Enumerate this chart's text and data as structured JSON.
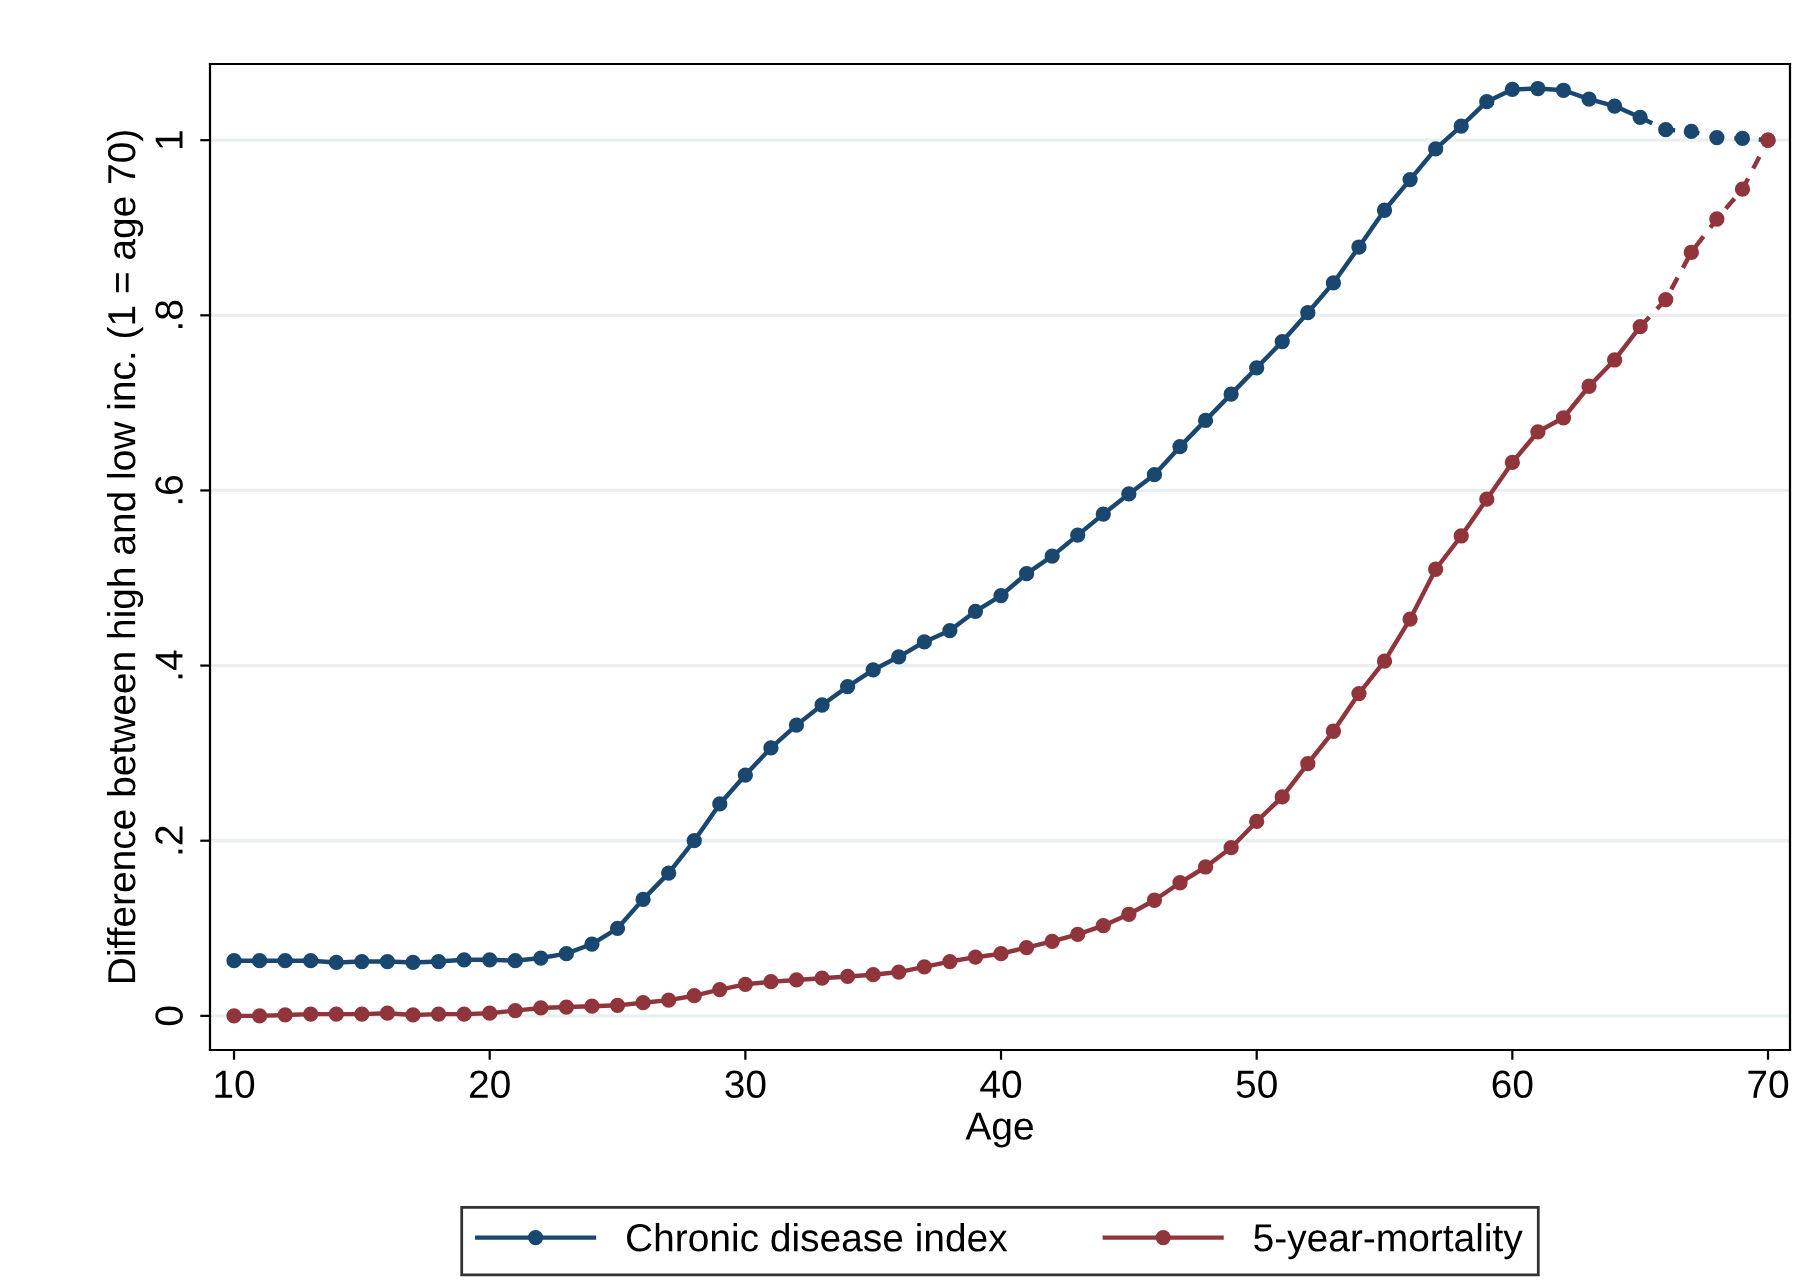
{
  "chart_data": {
    "type": "line",
    "xlabel": "Age",
    "ylabel": "Difference between high and low inc. (1 = age 70)",
    "xlim": [
      9.06,
      70.86
    ],
    "xticks": [
      10,
      20,
      30,
      40,
      50,
      60,
      70
    ],
    "ylim": [
      -0.039,
      1.087
    ],
    "yticks": [
      {
        "value": 0,
        "label": "0"
      },
      {
        "value": 0.2,
        "label": ".2"
      },
      {
        "value": 0.4,
        "label": ".4"
      },
      {
        "value": 0.6,
        "label": ".6"
      },
      {
        "value": 0.8,
        "label": ".8"
      },
      {
        "value": 1,
        "label": "1"
      }
    ],
    "grid": "y",
    "legend": "bottom",
    "marker": "circle",
    "series": [
      {
        "name": "Chronic disease index",
        "color": "#1a476f",
        "line_style": "solid",
        "x": [
          10,
          11,
          12,
          13,
          14,
          15,
          16,
          17,
          18,
          19,
          20,
          21,
          22,
          23,
          24,
          25,
          26,
          27,
          28,
          29,
          30,
          31,
          32,
          33,
          34,
          35,
          36,
          37,
          38,
          39,
          40,
          41,
          42,
          43,
          44,
          45,
          46,
          47,
          48,
          49,
          50,
          51,
          52,
          53,
          54,
          55,
          56,
          57,
          58,
          59,
          60,
          61,
          62,
          63,
          64,
          65
        ],
        "values": [
          0.063,
          0.063,
          0.063,
          0.063,
          0.061,
          0.062,
          0.062,
          0.061,
          0.062,
          0.064,
          0.064,
          0.063,
          0.066,
          0.071,
          0.082,
          0.1,
          0.133,
          0.163,
          0.2,
          0.242,
          0.275,
          0.306,
          0.332,
          0.355,
          0.376,
          0.395,
          0.41,
          0.427,
          0.44,
          0.462,
          0.48,
          0.505,
          0.525,
          0.549,
          0.573,
          0.596,
          0.618,
          0.65,
          0.68,
          0.71,
          0.74,
          0.77,
          0.803,
          0.837,
          0.878,
          0.92,
          0.955,
          0.99,
          1.016,
          1.044,
          1.058,
          1.059,
          1.057,
          1.047,
          1.039,
          1.026
        ]
      },
      {
        "name": "5-year-mortality",
        "color": "#90353b",
        "line_style": "solid",
        "x": [
          10,
          11,
          12,
          13,
          14,
          15,
          16,
          17,
          18,
          19,
          20,
          21,
          22,
          23,
          24,
          25,
          26,
          27,
          28,
          29,
          30,
          31,
          32,
          33,
          34,
          35,
          36,
          37,
          38,
          39,
          40,
          41,
          42,
          43,
          44,
          45,
          46,
          47,
          48,
          49,
          50,
          51,
          52,
          53,
          54,
          55,
          56,
          57,
          58,
          59,
          60,
          61,
          62,
          63,
          64,
          65
        ],
        "values": [
          0,
          0,
          0.001,
          0.002,
          0.002,
          0.002,
          0.003,
          0.001,
          0.002,
          0.002,
          0.003,
          0.006,
          0.009,
          0.01,
          0.011,
          0.012,
          0.015,
          0.018,
          0.023,
          0.03,
          0.036,
          0.039,
          0.041,
          0.043,
          0.045,
          0.047,
          0.05,
          0.056,
          0.062,
          0.067,
          0.071,
          0.078,
          0.085,
          0.093,
          0.103,
          0.116,
          0.132,
          0.152,
          0.17,
          0.192,
          0.222,
          0.25,
          0.288,
          0.325,
          0.368,
          0.405,
          0.453,
          0.51,
          0.548,
          0.59,
          0.632,
          0.667,
          0.683,
          0.719,
          0.749,
          0.787
        ]
      },
      {
        "color": "#1a476f",
        "line_style": "dashed",
        "x": [
          65,
          66,
          67,
          68,
          69,
          70
        ],
        "values": [
          1.026,
          1.012,
          1.01,
          1.003,
          1.002,
          1.0
        ]
      },
      {
        "color": "#90353b",
        "line_style": "dashed",
        "x": [
          65,
          66,
          67,
          68,
          69,
          70
        ],
        "values": [
          0.787,
          0.818,
          0.872,
          0.91,
          0.944,
          1.0
        ]
      }
    ]
  }
}
